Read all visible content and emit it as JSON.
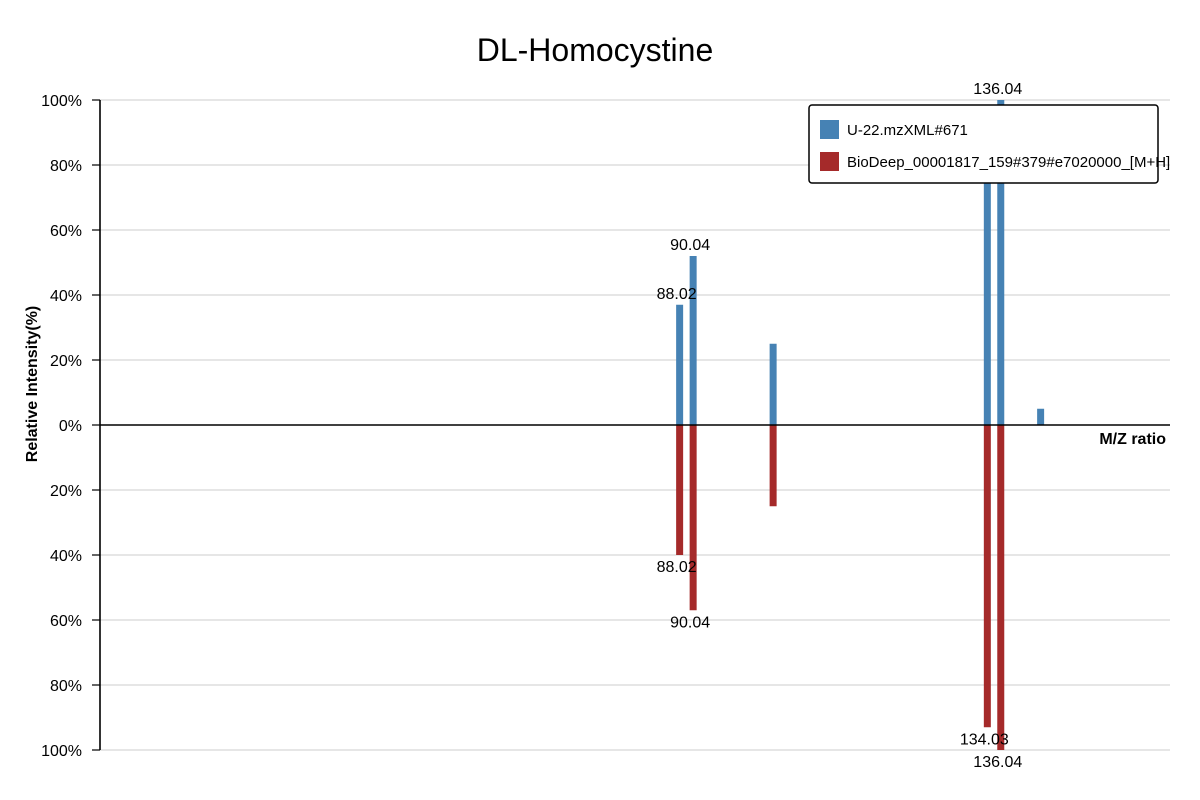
{
  "chart_data": {
    "type": "bar",
    "title": "DL-Homocystine",
    "xlabel": "M/Z ratio",
    "ylabel": "Relative Intensity(%)",
    "ylim": [
      -100,
      100
    ],
    "xlim": [
      0,
      160
    ],
    "y_ticks": [
      {
        "value": 100,
        "label": "100%"
      },
      {
        "value": 80,
        "label": "80%"
      },
      {
        "value": 60,
        "label": "60%"
      },
      {
        "value": 40,
        "label": "40%"
      },
      {
        "value": 20,
        "label": "20%"
      },
      {
        "value": 0,
        "label": "0%"
      },
      {
        "value": -20,
        "label": "20%"
      },
      {
        "value": -40,
        "label": "40%"
      },
      {
        "value": -60,
        "label": "60%"
      },
      {
        "value": -80,
        "label": "80%"
      },
      {
        "value": -100,
        "label": "100%"
      }
    ],
    "grid": true,
    "legend_position": "top-right",
    "series": [
      {
        "name": "U-22.mzXML#671",
        "color": "#4682b4",
        "direction": "up",
        "peaks": [
          {
            "mz": 88.02,
            "intensity": 37,
            "label": "88.02"
          },
          {
            "mz": 90.04,
            "intensity": 52,
            "label": "90.04"
          },
          {
            "mz": 102.0,
            "intensity": 25,
            "label": ""
          },
          {
            "mz": 134.03,
            "intensity": 88,
            "label": "134.03"
          },
          {
            "mz": 136.04,
            "intensity": 100,
            "label": "136.04"
          },
          {
            "mz": 142.0,
            "intensity": 5,
            "label": ""
          }
        ]
      },
      {
        "name": "BioDeep_00001817_159#379#e7020000_[M+H]",
        "color": "#a52a2a",
        "direction": "down",
        "peaks": [
          {
            "mz": 88.02,
            "intensity": 40,
            "label": "88.02"
          },
          {
            "mz": 90.04,
            "intensity": 57,
            "label": "90.04"
          },
          {
            "mz": 102.0,
            "intensity": 25,
            "label": ""
          },
          {
            "mz": 134.03,
            "intensity": 93,
            "label": "134.03"
          },
          {
            "mz": 136.04,
            "intensity": 100,
            "label": "136.04"
          }
        ]
      }
    ]
  }
}
